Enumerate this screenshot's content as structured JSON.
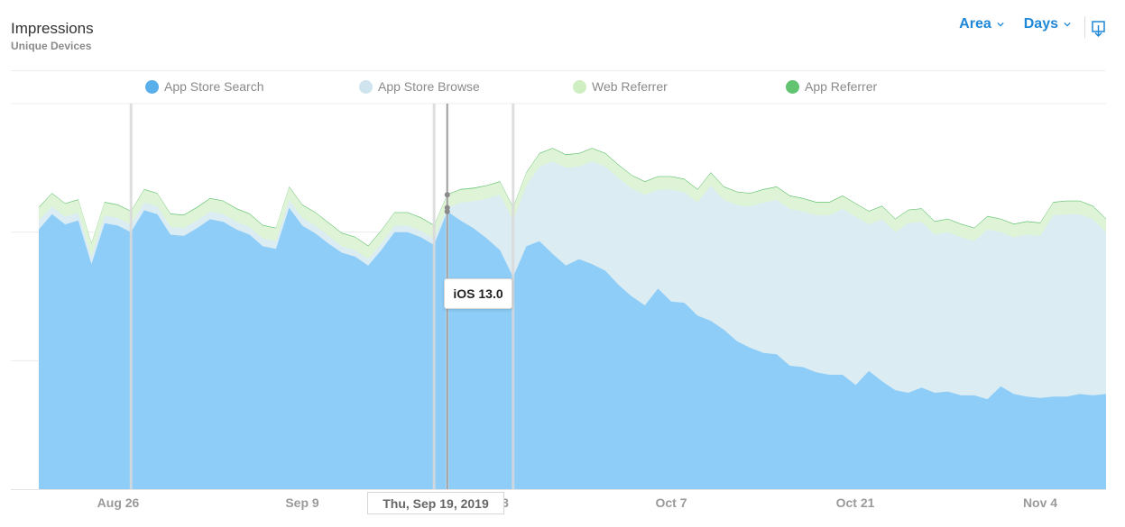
{
  "header": {
    "title": "Impressions",
    "subtitle": "Unique Devices"
  },
  "controls": {
    "chart_type": "Area",
    "interval": "Days"
  },
  "colors": {
    "accent": "#1e87d6",
    "app_store_search": "#8ecdf7",
    "app_store_search_legend": "#5aaee9",
    "app_store_browse": "#dbecf3",
    "app_store_browse_legend": "#cfe4ee",
    "web_referrer": "#dff3d7",
    "web_referrer_legend": "#cfeec2",
    "app_referrer": "#62c370"
  },
  "legend": [
    {
      "label": "App Store Search",
      "color": "#5aaee9"
    },
    {
      "label": "App Store Browse",
      "color": "#cfe4ee"
    },
    {
      "label": "Web Referrer",
      "color": "#cfeec2"
    },
    {
      "label": "App Referrer",
      "color": "#62c370"
    }
  ],
  "tooltip": {
    "text": "iOS 13.0"
  },
  "date_badge": {
    "text": "Thu, Sep 19, 2019"
  },
  "chart_data": {
    "type": "area",
    "stacked": true,
    "x": [
      "Aug 19",
      "Aug 20",
      "Aug 21",
      "Aug 22",
      "Aug 23",
      "Aug 24",
      "Aug 25",
      "Aug 26",
      "Aug 27",
      "Aug 28",
      "Aug 29",
      "Aug 30",
      "Aug 31",
      "Sep 1",
      "Sep 2",
      "Sep 3",
      "Sep 4",
      "Sep 5",
      "Sep 6",
      "Sep 7",
      "Sep 8",
      "Sep 9",
      "Sep 10",
      "Sep 11",
      "Sep 12",
      "Sep 13",
      "Sep 14",
      "Sep 15",
      "Sep 16",
      "Sep 17",
      "Sep 18",
      "Sep 19",
      "Sep 20",
      "Sep 21",
      "Sep 22",
      "Sep 23",
      "Sep 24",
      "Sep 25",
      "Sep 26",
      "Sep 27",
      "Sep 28",
      "Sep 29",
      "Sep 30",
      "Oct 1",
      "Oct 2",
      "Oct 3",
      "Oct 4",
      "Oct 5",
      "Oct 6",
      "Oct 7",
      "Oct 8",
      "Oct 9",
      "Oct 10",
      "Oct 11",
      "Oct 12",
      "Oct 13",
      "Oct 14",
      "Oct 15",
      "Oct 16",
      "Oct 17",
      "Oct 18",
      "Oct 19",
      "Oct 20",
      "Oct 21",
      "Oct 22",
      "Oct 23",
      "Oct 24",
      "Oct 25",
      "Oct 26",
      "Oct 27",
      "Oct 28",
      "Oct 29",
      "Oct 30",
      "Oct 31",
      "Nov 1",
      "Nov 2",
      "Nov 3",
      "Nov 4",
      "Nov 5",
      "Nov 6",
      "Nov 7",
      "Nov 8"
    ],
    "x_ticks": [
      "Aug 26",
      "Sep 9",
      "Oct 7",
      "Oct 21",
      "Nov 4"
    ],
    "x_tick_partial": "3",
    "series": [
      {
        "name": "App Store Search",
        "values": [
          2.02,
          2.14,
          2.06,
          2.09,
          1.75,
          2.07,
          2.05,
          2.0,
          2.17,
          2.14,
          1.98,
          1.97,
          2.03,
          2.1,
          2.08,
          2.02,
          1.98,
          1.89,
          1.87,
          2.19,
          2.05,
          1.99,
          1.91,
          1.84,
          1.81,
          1.74,
          1.86,
          2.0,
          2.0,
          1.96,
          1.9,
          2.16,
          2.09,
          2.03,
          1.95,
          1.86,
          1.65,
          1.89,
          1.93,
          1.83,
          1.74,
          1.79,
          1.75,
          1.7,
          1.59,
          1.5,
          1.43,
          1.56,
          1.46,
          1.45,
          1.35,
          1.31,
          1.24,
          1.15,
          1.1,
          1.06,
          1.05,
          0.96,
          0.95,
          0.91,
          0.89,
          0.89,
          0.81,
          0.92,
          0.84,
          0.77,
          0.75,
          0.79,
          0.75,
          0.76,
          0.73,
          0.73,
          0.7,
          0.8,
          0.74,
          0.72,
          0.71,
          0.72,
          0.72,
          0.74,
          0.73,
          0.74
        ]
      },
      {
        "name": "App Store Browse",
        "values": [
          0.07,
          0.06,
          0.06,
          0.06,
          0.06,
          0.06,
          0.06,
          0.06,
          0.06,
          0.06,
          0.06,
          0.06,
          0.06,
          0.06,
          0.06,
          0.06,
          0.06,
          0.06,
          0.06,
          0.06,
          0.06,
          0.06,
          0.06,
          0.05,
          0.05,
          0.05,
          0.05,
          0.05,
          0.05,
          0.05,
          0.05,
          0.03,
          0.14,
          0.21,
          0.31,
          0.43,
          0.44,
          0.47,
          0.58,
          0.72,
          0.76,
          0.72,
          0.8,
          0.81,
          0.83,
          0.84,
          0.86,
          0.77,
          0.87,
          0.86,
          0.88,
          1.05,
          1.01,
          1.06,
          1.1,
          1.17,
          1.2,
          1.22,
          1.21,
          1.22,
          1.24,
          1.29,
          1.31,
          1.14,
          1.26,
          1.23,
          1.32,
          1.29,
          1.23,
          1.24,
          1.23,
          1.2,
          1.32,
          1.2,
          1.22,
          1.26,
          1.26,
          1.41,
          1.42,
          1.4,
          1.37,
          1.26
        ]
      },
      {
        "name": "Web Referrer",
        "values": [
          0.1,
          0.1,
          0.1,
          0.1,
          0.1,
          0.1,
          0.1,
          0.1,
          0.1,
          0.1,
          0.1,
          0.1,
          0.1,
          0.1,
          0.1,
          0.1,
          0.1,
          0.1,
          0.1,
          0.1,
          0.1,
          0.1,
          0.1,
          0.1,
          0.1,
          0.1,
          0.1,
          0.1,
          0.1,
          0.1,
          0.1,
          0.1,
          0.1,
          0.1,
          0.1,
          0.1,
          0.1,
          0.1,
          0.1,
          0.1,
          0.1,
          0.1,
          0.1,
          0.1,
          0.1,
          0.1,
          0.1,
          0.1,
          0.1,
          0.1,
          0.1,
          0.1,
          0.1,
          0.1,
          0.1,
          0.1,
          0.1,
          0.1,
          0.1,
          0.1,
          0.1,
          0.1,
          0.1,
          0.1,
          0.1,
          0.1,
          0.1,
          0.1,
          0.1,
          0.1,
          0.1,
          0.1,
          0.1,
          0.1,
          0.1,
          0.1,
          0.1,
          0.1,
          0.1,
          0.1,
          0.1,
          0.1
        ]
      },
      {
        "name": "App Referrer",
        "values": [
          0.005,
          0.005,
          0.005,
          0.005,
          0.005,
          0.005,
          0.005,
          0.005,
          0.005,
          0.005,
          0.005,
          0.005,
          0.005,
          0.005,
          0.005,
          0.005,
          0.005,
          0.005,
          0.005,
          0.005,
          0.005,
          0.005,
          0.005,
          0.005,
          0.005,
          0.005,
          0.005,
          0.005,
          0.005,
          0.005,
          0.005,
          0.005,
          0.005,
          0.005,
          0.005,
          0.005,
          0.005,
          0.005,
          0.005,
          0.005,
          0.005,
          0.005,
          0.005,
          0.005,
          0.005,
          0.005,
          0.005,
          0.005,
          0.005,
          0.005,
          0.005,
          0.005,
          0.005,
          0.005,
          0.005,
          0.005,
          0.005,
          0.005,
          0.005,
          0.005,
          0.005,
          0.005,
          0.005,
          0.005,
          0.005,
          0.005,
          0.005,
          0.005,
          0.005,
          0.005,
          0.005,
          0.005,
          0.005,
          0.005,
          0.005,
          0.005,
          0.005,
          0.005,
          0.005,
          0.005,
          0.005,
          0.005
        ]
      }
    ],
    "ylim": [
      0,
      3
    ],
    "grid": true,
    "vertical_markers": [
      "Aug 26",
      "Sep 18",
      "Sep 19",
      "Sep 24"
    ],
    "highlight_x": "Sep 19",
    "legend_position": "top"
  }
}
